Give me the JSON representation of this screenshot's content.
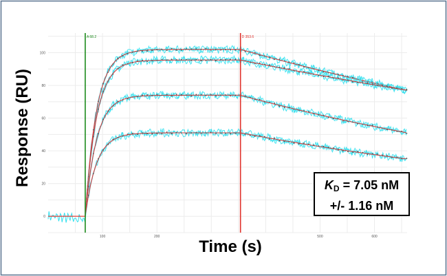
{
  "chart_data": {
    "type": "line",
    "xlabel": "Time (s)",
    "ylabel": "Response (RU)",
    "xlim": [
      0,
      660
    ],
    "ylim": [
      -10,
      112
    ],
    "x_ticks": [
      100,
      200,
      500,
      600
    ],
    "y_ticks": [
      0,
      20,
      40,
      60,
      80,
      100
    ],
    "grid": true,
    "markers": [
      {
        "label": "A 68.2",
        "x": 68.2,
        "color": "#1a8a1a"
      },
      {
        "label": "D 353.6",
        "x": 353.6,
        "color": "#e0302a"
      }
    ],
    "colors": {
      "data": "#33e0ee",
      "fit": "#d43c3c",
      "dots": "#555555",
      "baseline": "#e0302a"
    },
    "association_start": 68.2,
    "dissociation_start": 353.6,
    "series": [
      {
        "rmax": 102,
        "dissoc_end": 77
      },
      {
        "rmax": 95.5,
        "dissoc_end": 77
      },
      {
        "rmax": 74,
        "dissoc_end": 51
      },
      {
        "rmax": 51,
        "dissoc_end": 35
      }
    ]
  },
  "annotation": {
    "k_symbol": "K",
    "k_subscript": "D",
    "kd_value": "= 7.05 nM",
    "kd_error": "+/- 1.16 nM"
  }
}
